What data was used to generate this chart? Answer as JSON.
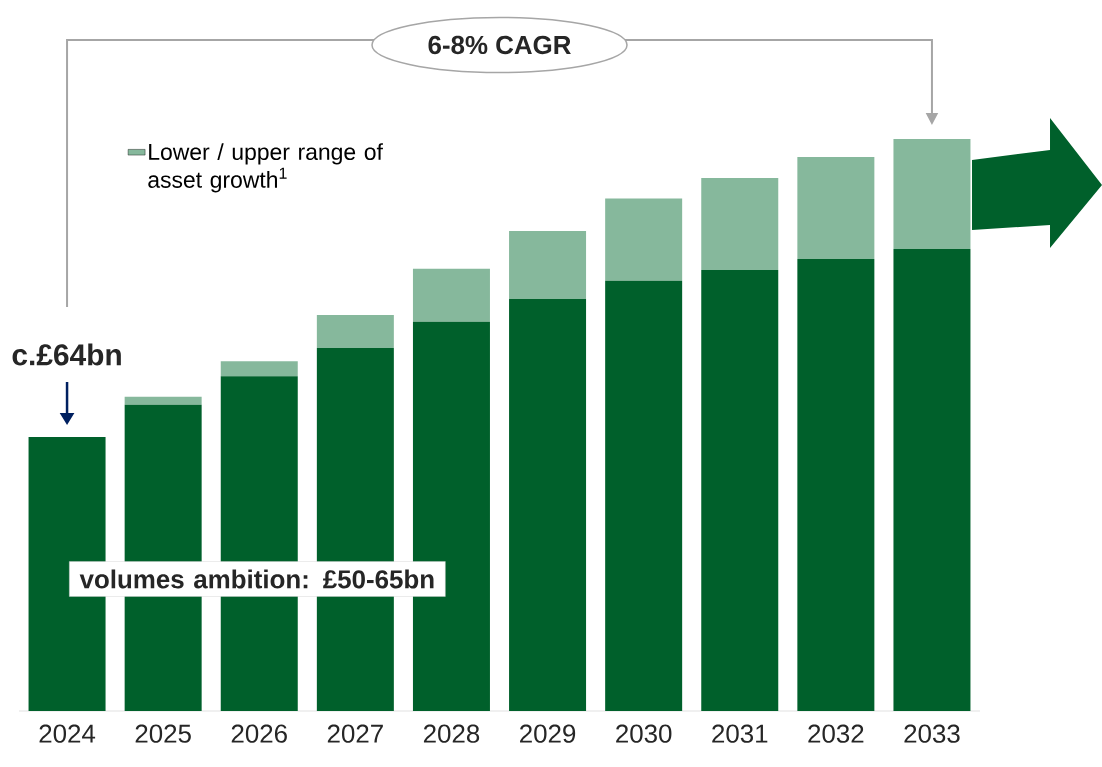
{
  "chart_data": {
    "type": "bar",
    "stacked": true,
    "categories": [
      "2024",
      "2025",
      "2026",
      "2027",
      "2028",
      "2029",
      "2030",
      "2031",
      "2032",
      "2033"
    ],
    "series": [
      {
        "color": "#00602b",
        "values": [
          64.0,
          71.5,
          78.2,
          84.8,
          90.9,
          96.2,
          100.5,
          103.0,
          105.6,
          107.9
        ],
        "value_labels": [
          "c.£64bn",
          null,
          null,
          null,
          null,
          null,
          null,
          null,
          null,
          null
        ]
      },
      {
        "name": "Lower / upper range of asset growth$^{1}$",
        "color": "#86b89c",
        "values": [
          0,
          1.9,
          3.5,
          7.7,
          12.4,
          15.9,
          19.2,
          21.5,
          23.8,
          25.7
        ]
      }
    ],
    "legend": "top left",
    "annotations": [
      "6-8% CAGR",
      "volumes ambition: £50-65bn"
    ]
  }
}
